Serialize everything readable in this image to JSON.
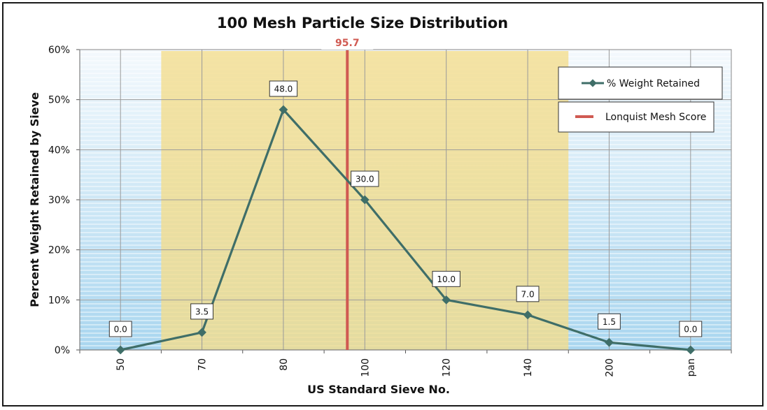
{
  "chart_data": {
    "type": "line",
    "title": "100 Mesh Particle Size Distribution",
    "xlabel": "US Standard Sieve No.",
    "ylabel": "Percent Weight Retained by Sieve",
    "categories": [
      "50",
      "70",
      "80",
      "100",
      "120",
      "140",
      "200",
      "pan"
    ],
    "series": [
      {
        "name": "% Weight Retained",
        "values": [
          0.0,
          3.5,
          48.0,
          30.0,
          10.0,
          7.0,
          1.5,
          0.0
        ],
        "labels": [
          "0.0",
          "3.5",
          "48.0",
          "30.0",
          "10.0",
          "7.0",
          "1.5",
          "0.0"
        ],
        "color": "#3f6e68"
      }
    ],
    "yticks": [
      "0%",
      "10%",
      "20%",
      "30%",
      "40%",
      "50%",
      "60%"
    ],
    "ylim": [
      0,
      60
    ],
    "highlight_band": {
      "from_category": "70",
      "to_category": "140",
      "color": "#f3dc8a"
    },
    "reference_line": {
      "name": "Lonquist Mesh Score",
      "value": 95.7,
      "label": "95.7",
      "color": "#d05a52"
    },
    "legend_placement": "top-right",
    "grid": true
  }
}
